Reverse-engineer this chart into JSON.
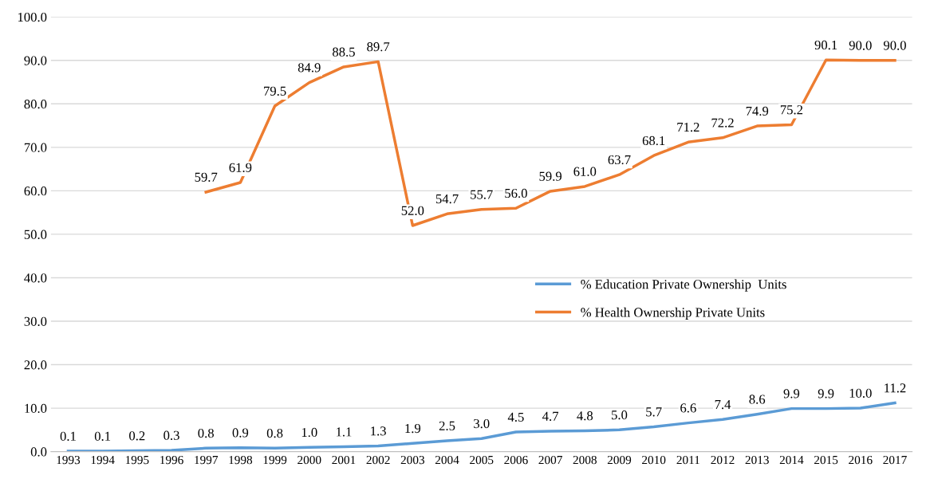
{
  "chart_data": {
    "type": "line",
    "categories": [
      "1993",
      "1994",
      "1995",
      "1996",
      "1997",
      "1998",
      "1999",
      "2000",
      "2001",
      "2002",
      "2003",
      "2004",
      "2005",
      "2006",
      "2007",
      "2008",
      "2009",
      "2010",
      "2011",
      "2012",
      "2013",
      "2014",
      "2015",
      "2016",
      "2017"
    ],
    "series": [
      {
        "name": "% Education Private Ownership  Units",
        "color": "#5b9bd5",
        "values": [
          0.1,
          0.1,
          0.2,
          0.3,
          0.8,
          0.9,
          0.8,
          1.0,
          1.1,
          1.3,
          1.9,
          2.5,
          3.0,
          4.5,
          4.7,
          4.8,
          5.0,
          5.7,
          6.6,
          7.4,
          8.6,
          9.9,
          9.9,
          10.0,
          11.2
        ],
        "value_labels": [
          "0.1",
          "0.1",
          "0.2",
          "0.3",
          "0.8",
          "0.9",
          "0.8",
          "1.0",
          "1.1",
          "1.3",
          "1.9",
          "2.5",
          "3.0",
          "4.5",
          "4.7",
          "4.8",
          "5.0",
          "5.7",
          "6.6",
          "7.4",
          "8.6",
          "9.9",
          "9.9",
          "10.0",
          "11.2"
        ]
      },
      {
        "name": "% Health Ownership Private Units",
        "color": "#ed7d31",
        "values": [
          null,
          null,
          null,
          null,
          59.7,
          61.9,
          79.5,
          84.9,
          88.5,
          89.7,
          52.0,
          54.7,
          55.7,
          56.0,
          59.9,
          61.0,
          63.7,
          68.1,
          71.2,
          72.2,
          74.9,
          75.2,
          90.1,
          90.0,
          90.0
        ],
        "value_labels": [
          null,
          null,
          null,
          null,
          "59.7",
          "61.9",
          "79.5",
          "84.9",
          "88.5",
          "89.7",
          "52.0",
          "54.7",
          "55.7",
          "56.0",
          "59.9",
          "61.0",
          "63.7",
          "68.1",
          "71.2",
          "72.2",
          "74.9",
          "75.2",
          "90.1",
          "90.0",
          "90.0"
        ]
      }
    ],
    "ylim": [
      0,
      100
    ],
    "yticks": [
      {
        "value": 0,
        "label": "0.0"
      },
      {
        "value": 10,
        "label": "10.0"
      },
      {
        "value": 20,
        "label": "20.0"
      },
      {
        "value": 30,
        "label": "30.0"
      },
      {
        "value": 40,
        "label": "40.0"
      },
      {
        "value": 50,
        "label": "50.0"
      },
      {
        "value": 60,
        "label": "60.0"
      },
      {
        "value": 70,
        "label": "70.0"
      },
      {
        "value": 80,
        "label": "80.0"
      },
      {
        "value": 90,
        "label": "90.0"
      },
      {
        "value": 100,
        "label": "100.0"
      }
    ],
    "grid": "y",
    "legend": "right",
    "marker": "none",
    "line_style": "solid"
  }
}
